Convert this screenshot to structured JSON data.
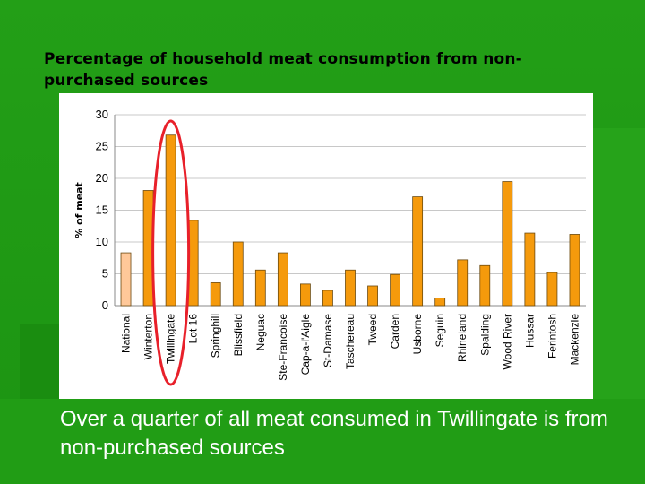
{
  "slide": {
    "title": "Percentage of household meat consumption from non-purchased sources",
    "caption": "Over a quarter of all meat consumed in Twillingate is from non-purchased sources"
  },
  "chart_data": {
    "type": "bar",
    "title": "",
    "xlabel": "",
    "ylabel": "% of meat",
    "ylim": [
      0,
      30
    ],
    "yticks": [
      0,
      5,
      10,
      15,
      20,
      25,
      30
    ],
    "grid": true,
    "categories": [
      "National",
      "Winterton",
      "Twillingate",
      "Lot 16",
      "Springhill",
      "Blissfield",
      "Neguac",
      "Ste-Francoise",
      "Cap-a-l'Aigle",
      "St-Damase",
      "Taschereau",
      "Tweed",
      "Carden",
      "Usborne",
      "Seguin",
      "Rhineland",
      "Spalding",
      "Wood River",
      "Hussar",
      "Ferintosh",
      "Mackenzie"
    ],
    "values": [
      8.3,
      18.1,
      26.8,
      13.4,
      3.6,
      10.0,
      5.6,
      8.3,
      3.4,
      2.4,
      5.6,
      3.1,
      4.9,
      17.1,
      1.2,
      7.2,
      6.3,
      19.5,
      11.4,
      5.2,
      11.2
    ],
    "colors": {
      "national": "#ffc899",
      "community": "#f59a0c",
      "bar_outline": "#6b4a10",
      "highlight_ellipse": "#e8202a"
    },
    "highlighted_category": "Twillingate"
  }
}
